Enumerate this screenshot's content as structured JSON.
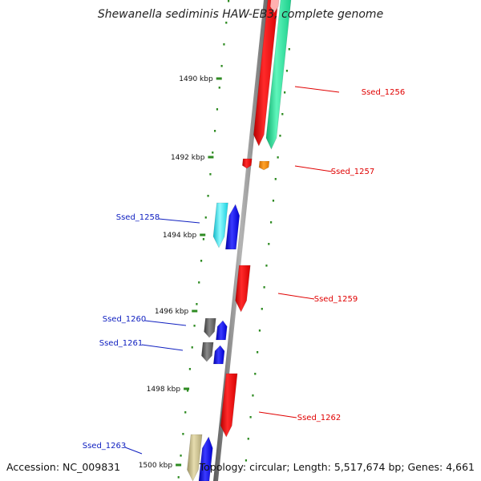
{
  "title": "Shewanella sediminis HAW-EB3, complete genome",
  "footer": {
    "accession": "Accession: NC_009831",
    "topology": "Topology: circular; Length: 5,517,674 bp; Genes: 4,661"
  },
  "scale_labels": [
    "1490 kbp",
    "1492 kbp",
    "1494 kbp",
    "1496 kbp",
    "1498 kbp",
    "1500 kbp"
  ],
  "genes": [
    {
      "label": "Ssed_1256",
      "side": "right"
    },
    {
      "label": "Ssed_1257",
      "side": "right"
    },
    {
      "label": "Ssed_1258",
      "side": "left"
    },
    {
      "label": "Ssed_1259",
      "side": "right"
    },
    {
      "label": "Ssed_1260",
      "side": "left"
    },
    {
      "label": "Ssed_1261",
      "side": "left"
    },
    {
      "label": "Ssed_1262",
      "side": "right"
    },
    {
      "label": "Ssed_1263",
      "side": "left"
    }
  ],
  "colors": {
    "backbone": "#8a8a8a",
    "ticks": "#2e8b22",
    "right_label": "#e00000",
    "left_label": "#1020c0",
    "red": "#ff0000",
    "green": "#1fe89a",
    "orange": "#ff8c00",
    "cyan": "#1ee8f0",
    "blue": "#1010f0",
    "gray": "#6a6a6a",
    "khaki": "#c8be88"
  }
}
